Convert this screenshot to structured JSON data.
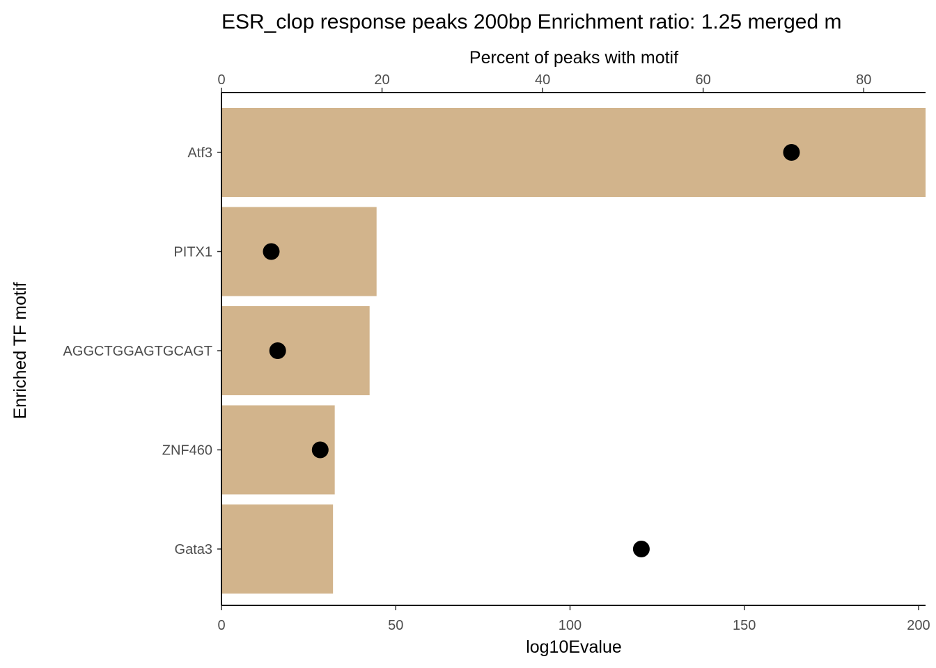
{
  "chart_data": {
    "type": "bar",
    "title": "ESR_clop response peaks 200bp Enrichment ratio: 1.25  merged m",
    "ylabel": "Enriched TF motif",
    "xlabel_bottom": "log10Evalue",
    "xlabel_top": "Percent of peaks with motif",
    "categories": [
      "Atf3",
      "PITX1",
      "AGGCTGGAGTGCAGT",
      "ZNF460",
      "Gata3"
    ],
    "series": [
      {
        "axis": "bottom",
        "marker": "bar",
        "values": [
          202,
          44.5,
          42.5,
          32.5,
          32
        ]
      },
      {
        "axis": "top",
        "marker": "point",
        "values": [
          71,
          6.2,
          7,
          12.3,
          52.3
        ]
      }
    ],
    "xlim_bottom": [
      0,
      202
    ],
    "xticks_bottom": [
      "0",
      "50",
      "100",
      "150",
      "200"
    ],
    "xlim_top": [
      0,
      87.7
    ],
    "xticks_top": [
      "0",
      "20",
      "40",
      "60",
      "80"
    ],
    "bar_color": "#D2B48C",
    "point_color": "#000000",
    "grid": false
  }
}
